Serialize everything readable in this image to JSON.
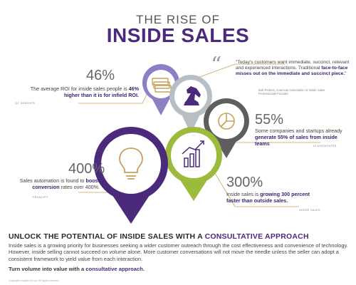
{
  "title": {
    "top": "THE RISE OF",
    "main": "INSIDE SALES"
  },
  "stats": [
    {
      "num": "46%",
      "pre": "The average ROI for inside sales people is ",
      "bold": "46% higher than it is for infield ROI.",
      "post": "",
      "source": "QC INSIGHTS"
    },
    {
      "num": "55%",
      "pre": "Some companies and startups already ",
      "bold": "generate 55% of sales from inside teams",
      "post": "",
      "source": "IS ASSOCIATES"
    },
    {
      "num": "400%",
      "pre": "Sales automation is found to ",
      "bold": "boost conversion",
      "post": " rates over 400%.",
      "source": "FRANCIFY"
    },
    {
      "num": "300%",
      "pre": "Inside sales is ",
      "bold": "growing 300 percent faster than outside sales.",
      "post": "",
      "source": "INSIDE SALES"
    }
  ],
  "quote": {
    "text_pre": "\"Today's customers want immediate, succinct, relevant and experienced interactions. Traditional ",
    "text_bold": "face-to-face misses out on the immediate and succinct piece.",
    "text_post": "\"",
    "attr": "Bob Perkins, American Association of Inside Sales Professionals Founder"
  },
  "icons": [
    "money-icon",
    "chess-knight-icon",
    "pie-chart-icon",
    "bar-chart-icon",
    "lightbulb-icon"
  ],
  "colors": {
    "purple": "#4b2a7b",
    "lavender": "#8e7ec4",
    "gray": "#b8bfc4",
    "dark_gray": "#5e5e5e",
    "green": "#9cba3b"
  },
  "bottom": {
    "headline_pre": "UNLOCK THE POTENTIAL OF INSIDE SALES WITH A ",
    "headline_accent": "CONSULTATIVE APPROACH",
    "body": "Inside sales is a growing priority for businesses seeking a wider customer outreach through the cost effectiveness and convenience of technology. However, inside selling cannot succeed on volume alone. More customer conversations will not move the needle unless the seller can adopt a consistent framework to yield value from each interaction.",
    "cta_pre": "Turn volume into value with a ",
    "cta_accent": "consultative approach",
    "cta_post": ".",
    "footnote": "Copyright Insights Group. All rights reserved."
  }
}
